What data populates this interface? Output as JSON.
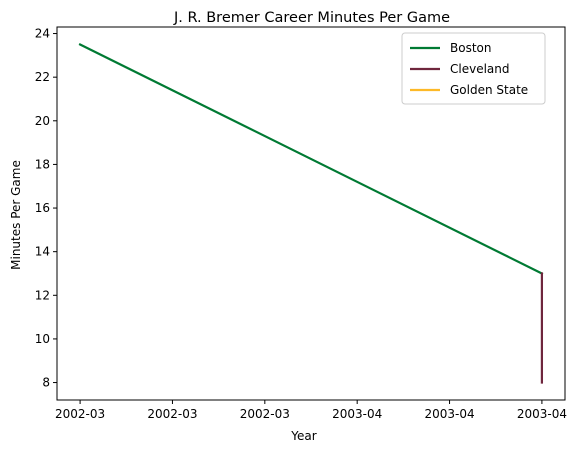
{
  "chart_data": {
    "type": "line",
    "title": "J. R. Bremer Career Minutes Per Game",
    "xlabel": "Year",
    "ylabel": "Minutes Per Game",
    "x_ticks": [
      "2002-03",
      "2002-03",
      "2002-03",
      "2003-04",
      "2003-04",
      "2003-04"
    ],
    "x_tick_positions": [
      0,
      0.2,
      0.4,
      0.6,
      0.8,
      1.0
    ],
    "xlim": [
      -0.05,
      1.05
    ],
    "y_ticks": [
      8,
      10,
      12,
      14,
      16,
      18,
      20,
      22,
      24
    ],
    "ylim": [
      7.2,
      24.3
    ],
    "grid": false,
    "legend_position": "top-right",
    "series": [
      {
        "name": "Boston",
        "color": "#007A33",
        "x": [
          0,
          1
        ],
        "y": [
          23.5,
          13.0
        ]
      },
      {
        "name": "Cleveland",
        "color": "#6F263D",
        "x": [
          1,
          1
        ],
        "y": [
          13.0,
          8.0
        ]
      },
      {
        "name": "Golden State",
        "color": "#FDB927",
        "x": [],
        "y": []
      }
    ]
  }
}
